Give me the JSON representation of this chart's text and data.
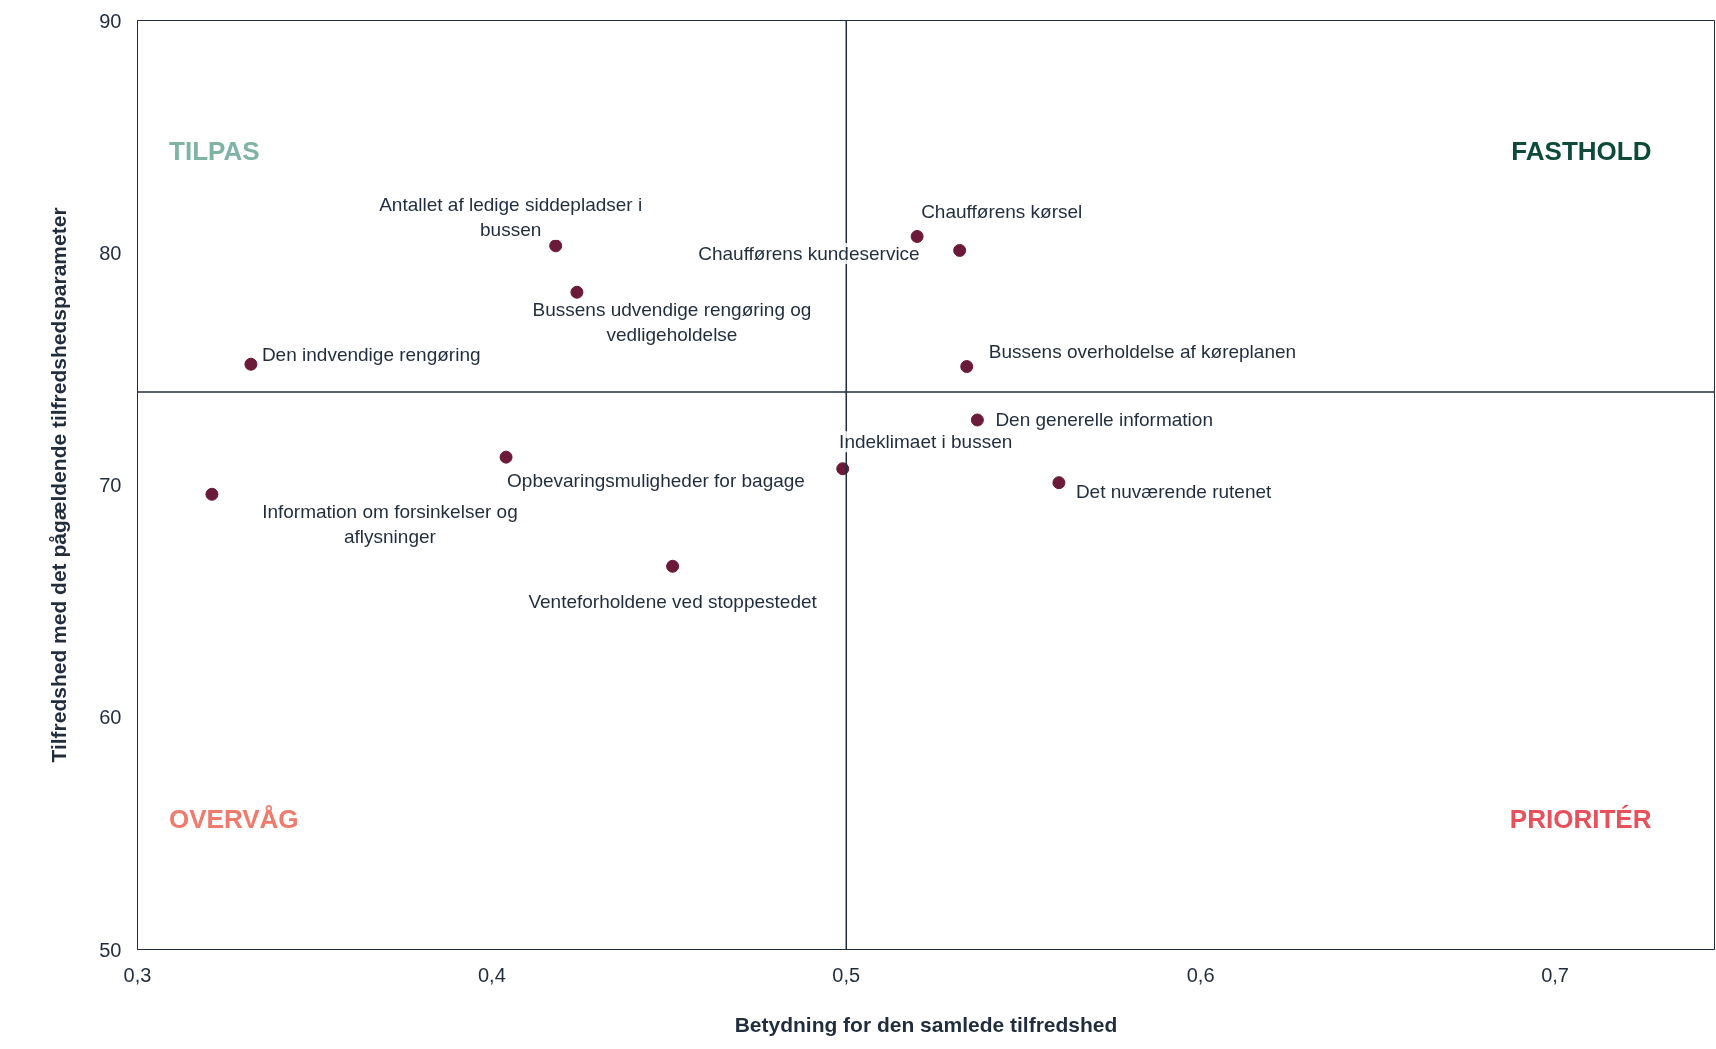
{
  "chart_data": {
    "type": "scatter",
    "xlabel": "Betydning for den samlede tilfredshed",
    "ylabel": "Tilfredshed med det pågældende tilfredshedsparameter",
    "x": [
      0.418,
      0.424,
      0.332,
      0.52,
      0.532,
      0.534,
      0.537,
      0.499,
      0.56,
      0.404,
      0.321,
      0.451
    ],
    "values": [
      80.3,
      78.3,
      75.2,
      80.7,
      80.1,
      75.1,
      72.8,
      70.7,
      70.1,
      71.2,
      69.6,
      66.5
    ],
    "color": "#6b1a3a",
    "marker": "circle",
    "grid": false,
    "xlim": [
      0.3,
      0.745
    ],
    "ylim": [
      50,
      90
    ],
    "xticks": [
      {
        "value": 0.3,
        "label": "0,3"
      },
      {
        "value": 0.4,
        "label": "0,4"
      },
      {
        "value": 0.5,
        "label": "0,5"
      },
      {
        "value": 0.6,
        "label": "0,6"
      },
      {
        "value": 0.7,
        "label": "0,7"
      }
    ],
    "yticks": [
      50,
      60,
      70,
      80,
      90
    ],
    "ref_lines": [
      {
        "axis": "x",
        "value": 0.5,
        "color": "#1f2d3d"
      },
      {
        "axis": "y",
        "value": 74,
        "color": "#1f2d3d"
      }
    ],
    "annotations": [
      {
        "text": "Antallet af ledige siddepladser i\nbussen",
        "x": 0.418,
        "y": 80.3
      },
      {
        "text": "Bussens udvendige rengøring og\nvedligeholdelse",
        "x": 0.424,
        "y": 78.3
      },
      {
        "text": "Den indvendige rengøring",
        "x": 0.332,
        "y": 75.2
      },
      {
        "text": "Chaufførens kørsel",
        "x": 0.52,
        "y": 80.7
      },
      {
        "text": "Chaufførens kundeservice",
        "x": 0.532,
        "y": 80.1
      },
      {
        "text": "Bussens overholdelse af køreplanen",
        "x": 0.534,
        "y": 75.1
      },
      {
        "text": "Den generelle information",
        "x": 0.537,
        "y": 72.8
      },
      {
        "text": "Indeklimaet i bussen",
        "x": 0.499,
        "y": 70.7
      },
      {
        "text": "Det nuværende rutenet",
        "x": 0.56,
        "y": 70.1
      },
      {
        "text": "Opbevaringsmuligheder for bagage",
        "x": 0.404,
        "y": 71.2
      },
      {
        "text": "Information om forsinkelser og\naflysninger",
        "x": 0.321,
        "y": 69.6
      },
      {
        "text": "Venteforholdene ved stoppestedet",
        "x": 0.451,
        "y": 66.5
      },
      "TILPAS",
      "FASTHOLD",
      "OVERVÅG",
      "PRIORITÉR"
    ]
  }
}
